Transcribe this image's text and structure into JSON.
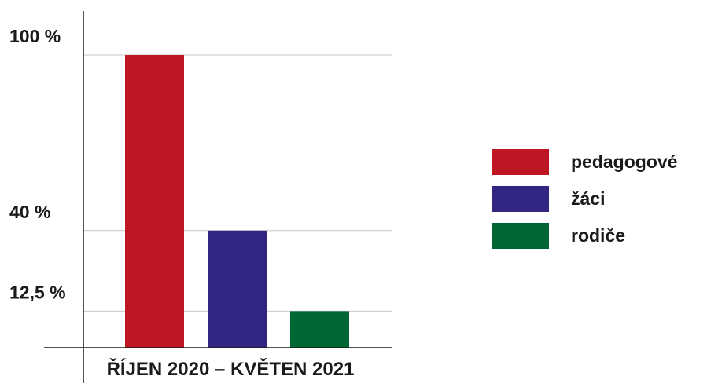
{
  "chart_data": {
    "type": "bar",
    "categories": [
      "ŘÍJEN 2020 – KVĚTEN 2021"
    ],
    "series": [
      {
        "name": "pedagogové",
        "values": [
          100
        ],
        "color": "#be1622"
      },
      {
        "name": "žáci",
        "values": [
          40
        ],
        "color": "#312783"
      },
      {
        "name": "rodiče",
        "values": [
          12.5
        ],
        "color": "#006633"
      }
    ],
    "y_ticks": [
      {
        "value": 100,
        "label": "100 %"
      },
      {
        "value": 40,
        "label": "40 %"
      },
      {
        "value": 12.5,
        "label": "12,5 %"
      }
    ],
    "ylim": [
      0,
      100
    ],
    "grid": true,
    "legend_position": "right"
  }
}
